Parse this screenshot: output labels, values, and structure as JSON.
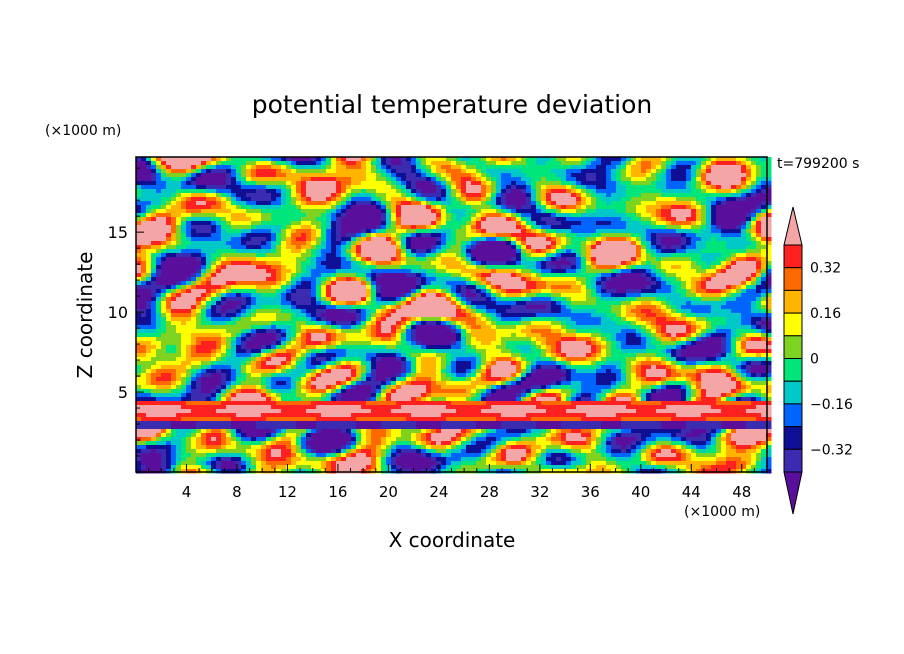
{
  "chart_data": {
    "type": "heatmap",
    "title": "potential temperature deviation",
    "xlabel": "X coordinate",
    "ylabel": "Z coordinate",
    "x_unit_label": "(×1000 m)",
    "y_unit_label": "(×1000 m)",
    "time_label": "t=799200 s",
    "xlim": [
      0,
      50
    ],
    "ylim": [
      0,
      19.7
    ],
    "x_ticks": [
      "4",
      "8",
      "12",
      "16",
      "20",
      "24",
      "28",
      "32",
      "36",
      "40",
      "44",
      "48"
    ],
    "y_ticks": [
      "5",
      "10",
      "15"
    ],
    "colorbar": {
      "levels": [
        -0.4,
        -0.32,
        -0.24,
        -0.16,
        -0.08,
        0,
        0.08,
        0.16,
        0.24,
        0.32,
        0.4
      ],
      "labels": [
        "0.32",
        "0.16",
        "0",
        "−0.16",
        "−0.32"
      ],
      "colors": [
        "#5a0f9c",
        "#3b2bb0",
        "#0f0f96",
        "#0064ff",
        "#00c8c8",
        "#00e67a",
        "#7ed321",
        "#ffff00",
        "#ffb400",
        "#ff6a00",
        "#ff2020",
        "#f4a6a6"
      ]
    }
  }
}
